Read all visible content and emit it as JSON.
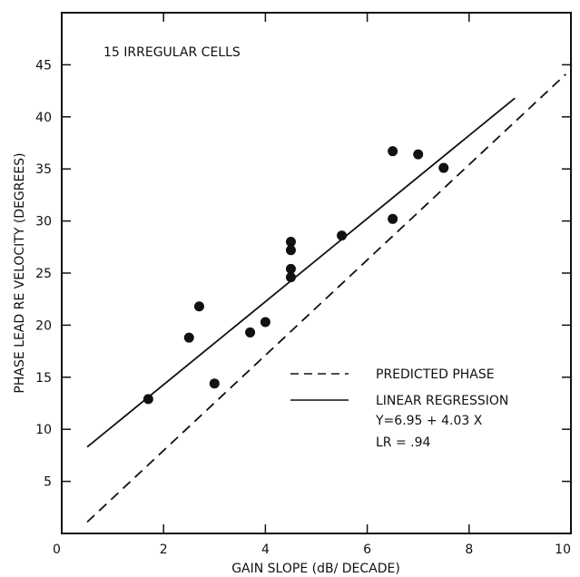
{
  "chart_data": {
    "type": "scatter",
    "title": "15 IRREGULAR CELLS",
    "xlabel": "GAIN SLOPE (dB/ DECADE)",
    "ylabel": "PHASE LEAD RE VELOCITY (DEGREES)",
    "xlim": [
      0,
      10
    ],
    "ylim": [
      0,
      50
    ],
    "x_ticks": [
      0,
      2,
      4,
      6,
      8,
      10
    ],
    "y_ticks": [
      5,
      10,
      15,
      20,
      25,
      30,
      35,
      40,
      45
    ],
    "x_tick_labels": [
      "0",
      "2",
      "4",
      "6",
      "8",
      "10"
    ],
    "y_tick_labels": [
      "5",
      "10",
      "15",
      "20",
      "25",
      "30",
      "35",
      "40",
      "45"
    ],
    "grid": false,
    "legend_position": "lower-right",
    "legend": {
      "predicted_label": "PREDICTED PHASE",
      "regression_label": "LINEAR REGRESSION",
      "equation": "Y=6.95 + 4.03 X",
      "r_value": "LR = .94"
    },
    "points": [
      {
        "x": 1.7,
        "y": 12.9
      },
      {
        "x": 2.5,
        "y": 18.8
      },
      {
        "x": 2.7,
        "y": 21.8
      },
      {
        "x": 3.0,
        "y": 14.4
      },
      {
        "x": 3.7,
        "y": 19.3
      },
      {
        "x": 4.0,
        "y": 20.3
      },
      {
        "x": 4.5,
        "y": 28.0
      },
      {
        "x": 4.5,
        "y": 27.2
      },
      {
        "x": 4.5,
        "y": 25.4
      },
      {
        "x": 4.5,
        "y": 24.6
      },
      {
        "x": 5.5,
        "y": 28.6
      },
      {
        "x": 6.5,
        "y": 36.7
      },
      {
        "x": 6.5,
        "y": 30.2
      },
      {
        "x": 7.0,
        "y": 36.4
      },
      {
        "x": 7.5,
        "y": 35.1
      }
    ],
    "lines": [
      {
        "name": "LINEAR REGRESSION",
        "style": "solid",
        "x": [
          0.5,
          8.9
        ],
        "y": [
          8.3,
          41.8
        ]
      },
      {
        "name": "PREDICTED PHASE",
        "style": "dashed",
        "x": [
          0.5,
          9.9
        ],
        "y": [
          1.1,
          44.1
        ]
      }
    ]
  }
}
